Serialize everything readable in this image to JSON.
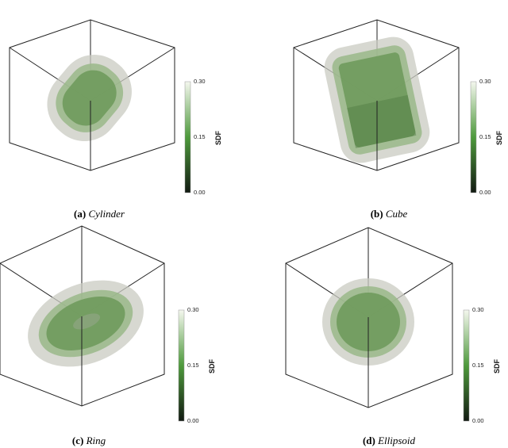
{
  "colorbar": {
    "title": "SDF",
    "ticks": [
      "0.00",
      "0.15",
      "0.30"
    ],
    "colors": {
      "low": "#121a12",
      "mid": "#4e9a3c",
      "high": "#f4f7ee"
    }
  },
  "panels": [
    {
      "tag": "(a)",
      "name": "Cylinder",
      "shape": "cylinder"
    },
    {
      "tag": "(b)",
      "name": "Cube",
      "shape": "cube"
    },
    {
      "tag": "(c)",
      "name": "Ring",
      "shape": "ring"
    },
    {
      "tag": "(d)",
      "name": "Ellipsoid",
      "shape": "ellipsoid"
    }
  ]
}
